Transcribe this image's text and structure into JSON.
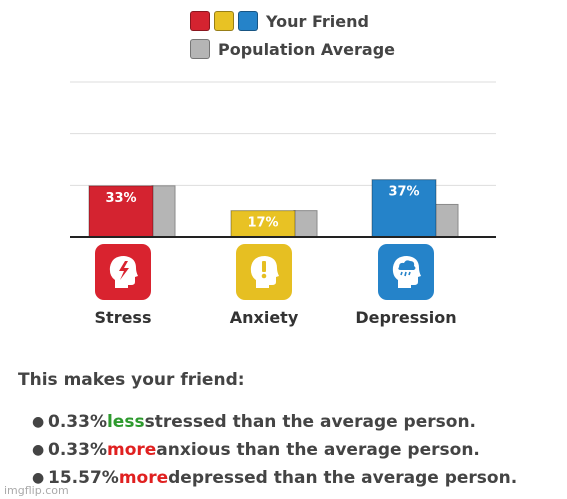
{
  "legend": {
    "friend_label": "Your Friend",
    "average_label": "Population Average",
    "friend_colors": [
      "#d42330",
      "#e8c224",
      "#2583c9"
    ],
    "average_color": "#b5b5b5"
  },
  "chart_data": {
    "type": "bar",
    "categories": [
      "Stress",
      "Anxiety",
      "Depression"
    ],
    "series": [
      {
        "name": "Your Friend",
        "values": [
          33,
          17,
          37
        ],
        "labels": [
          "33%",
          "17%",
          "37%"
        ]
      },
      {
        "name": "Population Average",
        "values": [
          33,
          17,
          21
        ]
      }
    ],
    "ylim": [
      0,
      100
    ],
    "grid": true,
    "legend_position": "top",
    "colors": [
      "#d42330",
      "#e8c224",
      "#2583c9"
    ],
    "average_color": "#b5b5b5"
  },
  "icons": [
    "stressed-head-icon",
    "anxious-head-icon",
    "depressed-head-icon"
  ],
  "summary": {
    "heading": "This makes your friend:",
    "items": [
      {
        "pre": "0.33% ",
        "highlight": "less",
        "post": " stressed than the average person."
      },
      {
        "pre": "0.33% ",
        "highlight": "more",
        "post": " anxious than the average person."
      },
      {
        "pre": "15.57% ",
        "highlight": "more",
        "post": " depressed than the average person."
      }
    ]
  },
  "watermark": "imgflip.com"
}
